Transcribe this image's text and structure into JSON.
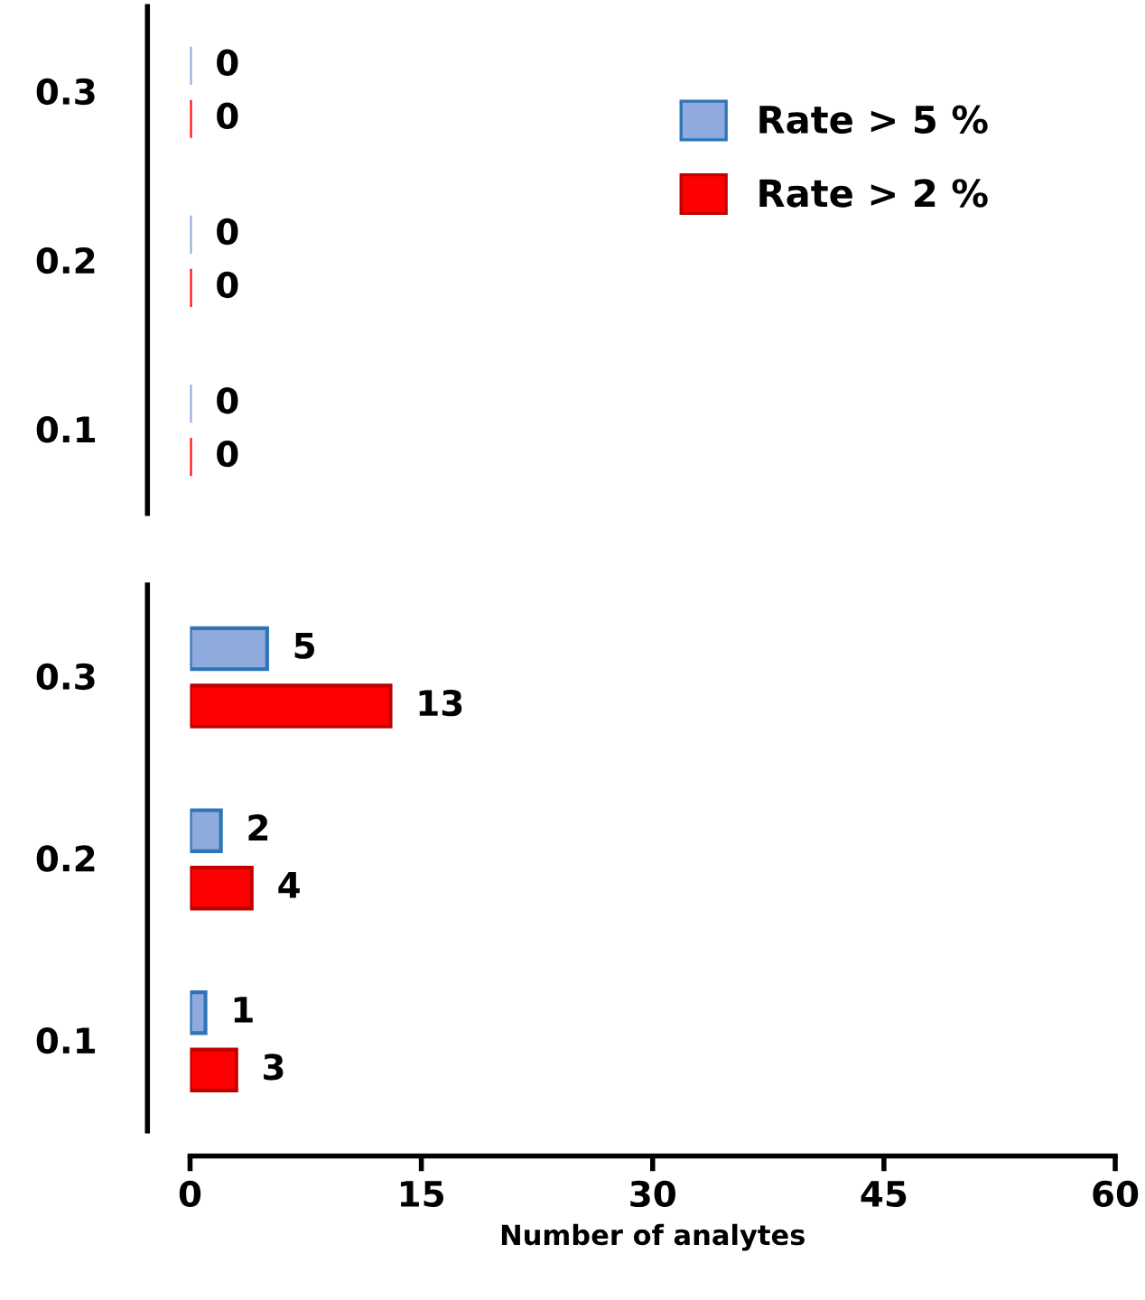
{
  "chart_data": [
    {
      "type": "bar",
      "orientation": "horizontal",
      "categories": [
        "0.3",
        "0.2",
        "0.1"
      ],
      "xlim": [
        0,
        60
      ],
      "tick_labels": "y",
      "data_labels": true,
      "legend": "top right",
      "series": [
        {
          "name": "Rate > 5 %",
          "color": "#8faadc",
          "values": [
            0,
            0,
            0
          ]
        },
        {
          "name": "Rate > 2 %",
          "color": "#ff0000",
          "values": [
            0,
            0,
            0
          ]
        }
      ]
    },
    {
      "type": "bar",
      "orientation": "horizontal",
      "categories": [
        "0.3",
        "0.2",
        "0.1"
      ],
      "xlim": [
        0,
        60
      ],
      "xticks": [
        0,
        15,
        30,
        45,
        60
      ],
      "xlabel": "Number of analytes",
      "data_labels": true,
      "series": [
        {
          "color": "#8faadc",
          "values": [
            5,
            2,
            1
          ]
        },
        {
          "color": "#ff0000",
          "values": [
            13,
            4,
            3
          ]
        }
      ]
    }
  ]
}
